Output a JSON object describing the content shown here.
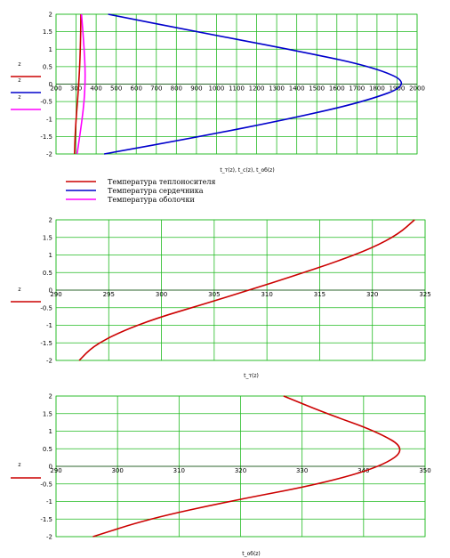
{
  "chart_data": [
    {
      "type": "line",
      "xlim": [
        200,
        2000
      ],
      "ylim": [
        -2,
        2
      ],
      "xticks": [
        "200",
        "300",
        "400",
        "500",
        "600",
        "700",
        "800",
        "900",
        "1000",
        "1100",
        "1200",
        "1300",
        "1400",
        "1500",
        "1600",
        "1700",
        "1800",
        "1900",
        "2000"
      ],
      "yticks": [
        "2",
        "1.5",
        "1",
        "0.5",
        "0",
        "-0.5",
        "-1",
        "-1.5",
        "-2"
      ],
      "xlabel": "t_т(z), t_c(z), t_об(z)",
      "y_axis_label": "z",
      "grid": true,
      "series": [
        {
          "name": "Температура теплоносителя",
          "color": "#cc0000",
          "x": [
            292,
            295,
            300,
            307,
            313,
            318,
            321,
            323,
            324
          ],
          "y": [
            -2,
            -1.5,
            -1,
            -0.5,
            0,
            0.5,
            1,
            1.5,
            2
          ]
        },
        {
          "name": "Температура сердечника",
          "color": "#0000cc",
          "x": [
            440,
            920,
            1360,
            1740,
            1975,
            1780,
            1360,
            900,
            460
          ],
          "y": [
            -2,
            -1.5,
            -1,
            -0.5,
            0,
            0.5,
            1,
            1.5,
            2
          ]
        },
        {
          "name": "Температура оболочки",
          "color": "#ff00ff",
          "x": [
            305,
            318,
            330,
            340,
            345,
            345,
            340,
            334,
            327
          ],
          "y": [
            -2,
            -1.5,
            -1,
            -0.5,
            0,
            0.5,
            1,
            1.5,
            2
          ]
        }
      ]
    },
    {
      "type": "line",
      "xlim": [
        290,
        325
      ],
      "ylim": [
        -2,
        2
      ],
      "xticks": [
        "290",
        "295",
        "300",
        "305",
        "310",
        "315",
        "320",
        "325"
      ],
      "yticks": [
        "2",
        "1.5",
        "1",
        "0.5",
        "0",
        "-0.5",
        "-1",
        "-1.5",
        "-2"
      ],
      "xlabel": "t_т(z)",
      "y_axis_label": "z",
      "grid": true,
      "series": [
        {
          "name": "z",
          "color": "#cc0000",
          "x": [
            292.2,
            293.5,
            296,
            299.5,
            304,
            308.3,
            312.5,
            316.5,
            320,
            322.5,
            324
          ],
          "y": [
            -2,
            -1.6,
            -1.2,
            -0.8,
            -0.4,
            0,
            0.4,
            0.8,
            1.2,
            1.6,
            2
          ]
        }
      ]
    },
    {
      "type": "line",
      "xlim": [
        290,
        350
      ],
      "ylim": [
        -2,
        2
      ],
      "xticks": [
        "290",
        "300",
        "310",
        "320",
        "330",
        "340",
        "350"
      ],
      "yticks": [
        "2",
        "1.5",
        "1",
        "0.5",
        "0",
        "-0.5",
        "-1",
        "-1.5",
        "-2"
      ],
      "xlabel": "t_об(z)",
      "y_axis_label": "z",
      "grid": true,
      "series": [
        {
          "name": "z",
          "color": "#cc0000",
          "x": [
            296,
            305,
            318,
            333,
            343,
            347,
            342,
            334,
            327
          ],
          "y": [
            -2,
            -1.5,
            -1,
            -0.5,
            0,
            0.5,
            1,
            1.5,
            2
          ]
        }
      ]
    }
  ],
  "legend": {
    "items": [
      {
        "label": "Температура теплоносителя",
        "color": "#cc0000"
      },
      {
        "label": "Температура сердечника",
        "color": "#0000cc"
      },
      {
        "label": "Температура оболочки",
        "color": "#ff00ff"
      }
    ]
  }
}
